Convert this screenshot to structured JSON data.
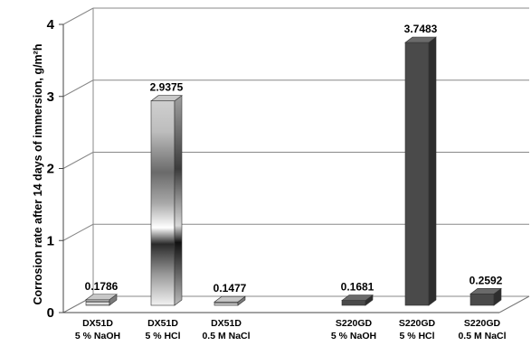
{
  "chart_data": {
    "type": "bar",
    "categories": [
      [
        "DX51D",
        "5 % NaOH"
      ],
      [
        "DX51D",
        "5 % HCl"
      ],
      [
        "DX51D",
        "0.5 M NaCl"
      ],
      [
        "S220GD",
        "5 % NaOH"
      ],
      [
        "S220GD",
        "5 % HCl"
      ],
      [
        "S220GD",
        "0.5 M NaCl"
      ]
    ],
    "values": [
      0.1786,
      2.9375,
      0.1477,
      0.1681,
      3.7483,
      0.2592
    ],
    "data_labels": [
      "0.1786",
      "2.9375",
      "0.1477",
      "0.1681",
      "3.7483",
      "0.2592"
    ],
    "ylabel": "Corrosion rate after 14 days of immersion, g/m²h",
    "ylim": [
      0,
      4
    ],
    "yticks": [
      0,
      1,
      2,
      3,
      4
    ],
    "grid": true,
    "three_d": true,
    "colors": {
      "dark_bar": "#4a4a4a",
      "dark_bar_top": "#6a6a6a",
      "dark_bar_side": "#2e2e2e",
      "gradient_dark": "#3a3a3a",
      "gradient_light": "#ffffff",
      "grid": "#888888"
    },
    "bar_styles": [
      "gradient",
      "gradient",
      "gradient",
      "dark",
      "dark",
      "dark"
    ]
  }
}
